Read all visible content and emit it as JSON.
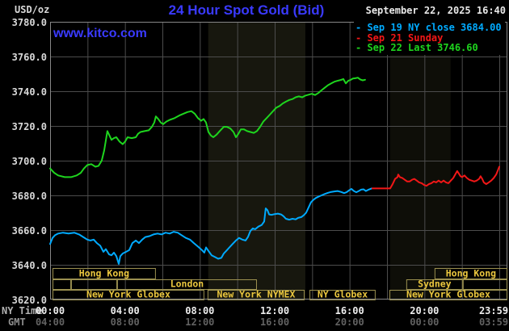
{
  "header": {
    "unit_label": "USD/oz",
    "title": "24 Hour Spot Gold (Bid)",
    "watermark": "www.kitco.com",
    "datetime": "September 22, 2025 16:40",
    "legend_dash": "-",
    "title_color": "#3a3aff"
  },
  "axes": {
    "ny_label": "NY Time",
    "gmt_label": "GMT",
    "ticks_hours": [
      0,
      4,
      8,
      12,
      16,
      20,
      24
    ],
    "ticks_ny": [
      "00:00",
      "04:00",
      "08:00",
      "12:00",
      "16:00",
      "20:00",
      "23:59"
    ],
    "ticks_gmt": [
      "04:00",
      "08:00",
      "12:00",
      "16:00",
      "20:00",
      "00:00",
      "03:59"
    ],
    "y_ticks": [
      "3780.0",
      "3760.0",
      "3740.0",
      "3720.0",
      "3700.0",
      "3680.0",
      "3660.0",
      "3640.0",
      "3620.0"
    ]
  },
  "chart_data": {
    "type": "line",
    "title": "24 Hour Spot Gold (Bid)",
    "xlabel": "NY Time",
    "ylabel": "USD/oz",
    "ylim": [
      3620,
      3780
    ],
    "y_step": 20,
    "x_hours_range": [
      0,
      24
    ],
    "grid": true,
    "legend_position": "top-right",
    "bands": [
      {
        "name": "nymex-floor-session",
        "start": 8.45,
        "end": 13.64,
        "color": "#17170e"
      },
      {
        "name": "sunday-evening-session",
        "start": 18.17,
        "end": 21.4,
        "color": "#0e0e08"
      }
    ],
    "sessions": {
      "box_border": "#9b9050",
      "label_color": "#eac63e",
      "rows": [
        {
          "items": [
            {
              "label": "Hong Kong",
              "start": 0.13,
              "end": 5.65
            },
            {
              "label": "Hong Kong",
              "start": 20.54,
              "end": 24.43
            }
          ]
        },
        {
          "items": [
            {
              "label": "",
              "start": 0.13,
              "end": 1.12
            },
            {
              "label": "",
              "start": 1.12,
              "end": 3.58
            },
            {
              "label": "London",
              "start": 3.58,
              "end": 11.05
            },
            {
              "label": "Sydney",
              "start": 19.03,
              "end": 22.05
            },
            {
              "label": "",
              "start": 22.05,
              "end": 24.43
            }
          ]
        },
        {
          "items": [
            {
              "label": "New York Globex",
              "start": 0.13,
              "end": 8.24
            },
            {
              "label": "New York NYMEX",
              "start": 8.41,
              "end": 13.6
            },
            {
              "label": "NY Globex",
              "start": 13.86,
              "end": 17.39
            },
            {
              "label": "New York Globex",
              "start": 18.13,
              "end": 24.43
            }
          ]
        }
      ]
    },
    "series": [
      {
        "name": "Sep 19",
        "legend": "Sep 19 NY close 3684.00",
        "color": "#00aaff",
        "points": [
          [
            0,
            3652
          ],
          [
            0.13,
            3655.5
          ],
          [
            0.26,
            3657
          ],
          [
            0.43,
            3658
          ],
          [
            0.69,
            3658.5
          ],
          [
            0.99,
            3658
          ],
          [
            1.29,
            3658.5
          ],
          [
            1.55,
            3657.5
          ],
          [
            1.77,
            3656
          ],
          [
            1.99,
            3654.5
          ],
          [
            2.16,
            3654
          ],
          [
            2.33,
            3654.5
          ],
          [
            2.5,
            3652.5
          ],
          [
            2.68,
            3651
          ],
          [
            2.85,
            3647.5
          ],
          [
            2.98,
            3649
          ],
          [
            3.15,
            3646
          ],
          [
            3.28,
            3645.5
          ],
          [
            3.41,
            3647
          ],
          [
            3.54,
            3645
          ],
          [
            3.67,
            3640.5
          ],
          [
            3.75,
            3645
          ],
          [
            3.88,
            3646.5
          ],
          [
            4.06,
            3647.5
          ],
          [
            4.23,
            3648.5
          ],
          [
            4.4,
            3652.5
          ],
          [
            4.58,
            3654
          ],
          [
            4.75,
            3652.5
          ],
          [
            4.92,
            3654.5
          ],
          [
            5.09,
            3656
          ],
          [
            5.31,
            3656.5
          ],
          [
            5.52,
            3657.5
          ],
          [
            5.74,
            3658
          ],
          [
            5.96,
            3657.5
          ],
          [
            6.17,
            3658.5
          ],
          [
            6.39,
            3658
          ],
          [
            6.6,
            3659
          ],
          [
            6.82,
            3658.5
          ],
          [
            7.03,
            3657
          ],
          [
            7.25,
            3655.5
          ],
          [
            7.47,
            3654.5
          ],
          [
            7.68,
            3652.5
          ],
          [
            7.9,
            3650.5
          ],
          [
            8.11,
            3648.5
          ],
          [
            8.24,
            3647
          ],
          [
            8.33,
            3650
          ],
          [
            8.46,
            3648
          ],
          [
            8.63,
            3645.5
          ],
          [
            8.8,
            3644.5
          ],
          [
            8.98,
            3643.5
          ],
          [
            9.15,
            3644
          ],
          [
            9.28,
            3646.5
          ],
          [
            9.41,
            3648
          ],
          [
            9.58,
            3650
          ],
          [
            9.75,
            3652
          ],
          [
            9.93,
            3654
          ],
          [
            10.1,
            3655.5
          ],
          [
            10.27,
            3654.5
          ],
          [
            10.44,
            3654
          ],
          [
            10.57,
            3656
          ],
          [
            10.7,
            3659.5
          ],
          [
            10.83,
            3661
          ],
          [
            10.96,
            3660.5
          ],
          [
            11.13,
            3662
          ],
          [
            11.31,
            3663
          ],
          [
            11.44,
            3665
          ],
          [
            11.52,
            3672.5
          ],
          [
            11.61,
            3671.5
          ],
          [
            11.7,
            3669
          ],
          [
            11.83,
            3668.8
          ],
          [
            12,
            3669.2
          ],
          [
            12.17,
            3669.5
          ],
          [
            12.34,
            3669
          ],
          [
            12.47,
            3668
          ],
          [
            12.6,
            3666.5
          ],
          [
            12.78,
            3666
          ],
          [
            12.95,
            3666.5
          ],
          [
            13.12,
            3666.2
          ],
          [
            13.25,
            3667
          ],
          [
            13.42,
            3667.5
          ],
          [
            13.55,
            3668.5
          ],
          [
            13.68,
            3670
          ],
          [
            13.81,
            3673
          ],
          [
            13.94,
            3676
          ],
          [
            14.07,
            3677.5
          ],
          [
            14.2,
            3678.5
          ],
          [
            14.33,
            3679.2
          ],
          [
            14.5,
            3680
          ],
          [
            14.67,
            3680.8
          ],
          [
            14.85,
            3681.5
          ],
          [
            15.02,
            3682
          ],
          [
            15.19,
            3682.3
          ],
          [
            15.36,
            3682.5
          ],
          [
            15.54,
            3682
          ],
          [
            15.71,
            3681.3
          ],
          [
            15.84,
            3681.8
          ],
          [
            15.97,
            3682.9
          ],
          [
            16.1,
            3683.7
          ],
          [
            16.23,
            3682.5
          ],
          [
            16.36,
            3681.8
          ],
          [
            16.49,
            3682.5
          ],
          [
            16.62,
            3683.3
          ],
          [
            16.75,
            3683.5
          ],
          [
            16.87,
            3682.5
          ],
          [
            17,
            3683.2
          ],
          [
            17.18,
            3684
          ]
        ]
      },
      {
        "name": "Sep 21",
        "legend": "Sep 21 Sunday",
        "color": "#f21717",
        "points": [
          [
            17.22,
            3684
          ],
          [
            18.17,
            3684
          ],
          [
            18.3,
            3686.5
          ],
          [
            18.43,
            3689.5
          ],
          [
            18.56,
            3690.5
          ],
          [
            18.6,
            3692
          ],
          [
            18.69,
            3690.5
          ],
          [
            18.82,
            3690
          ],
          [
            18.95,
            3689
          ],
          [
            19.08,
            3688
          ],
          [
            19.21,
            3688
          ],
          [
            19.34,
            3689
          ],
          [
            19.46,
            3689.5
          ],
          [
            19.59,
            3688.5
          ],
          [
            19.72,
            3687.5
          ],
          [
            19.85,
            3687
          ],
          [
            19.98,
            3686
          ],
          [
            20.11,
            3685.5
          ],
          [
            20.24,
            3686.5
          ],
          [
            20.37,
            3687
          ],
          [
            20.5,
            3688
          ],
          [
            20.63,
            3687.5
          ],
          [
            20.76,
            3688.5
          ],
          [
            20.89,
            3687.5
          ],
          [
            21.02,
            3688.5
          ],
          [
            21.15,
            3687.5
          ],
          [
            21.28,
            3687
          ],
          [
            21.41,
            3688.5
          ],
          [
            21.54,
            3690
          ],
          [
            21.67,
            3692.5
          ],
          [
            21.75,
            3694
          ],
          [
            21.84,
            3692.5
          ],
          [
            21.93,
            3691
          ],
          [
            22.01,
            3690.5
          ],
          [
            22.14,
            3691.5
          ],
          [
            22.27,
            3690
          ],
          [
            22.4,
            3689
          ],
          [
            22.53,
            3688.5
          ],
          [
            22.66,
            3688
          ],
          [
            22.79,
            3688.5
          ],
          [
            22.92,
            3689.5
          ],
          [
            23,
            3691
          ],
          [
            23.09,
            3689.5
          ],
          [
            23.17,
            3687.5
          ],
          [
            23.3,
            3686.5
          ],
          [
            23.44,
            3687.5
          ],
          [
            23.57,
            3688.5
          ],
          [
            23.7,
            3690
          ],
          [
            23.83,
            3692
          ],
          [
            23.91,
            3694
          ],
          [
            24,
            3696.5
          ]
        ]
      },
      {
        "name": "Sep 22",
        "legend": "Sep 22 Last 3746.60",
        "color": "#1ed51e",
        "points": [
          [
            0,
            3695.5
          ],
          [
            0.22,
            3693
          ],
          [
            0.43,
            3691.5
          ],
          [
            0.78,
            3690.5
          ],
          [
            1.12,
            3690.5
          ],
          [
            1.42,
            3691.5
          ],
          [
            1.64,
            3693
          ],
          [
            1.81,
            3695.5
          ],
          [
            1.99,
            3697.5
          ],
          [
            2.2,
            3698
          ],
          [
            2.42,
            3696.5
          ],
          [
            2.59,
            3697
          ],
          [
            2.76,
            3700
          ],
          [
            2.89,
            3706
          ],
          [
            3.06,
            3717
          ],
          [
            3.15,
            3715
          ],
          [
            3.28,
            3712
          ],
          [
            3.41,
            3713
          ],
          [
            3.54,
            3713.5
          ],
          [
            3.71,
            3711
          ],
          [
            3.88,
            3709.5
          ],
          [
            4.01,
            3711
          ],
          [
            4.14,
            3713.5
          ],
          [
            4.36,
            3713
          ],
          [
            4.58,
            3713.5
          ],
          [
            4.7,
            3715.5
          ],
          [
            4.83,
            3716.5
          ],
          [
            5.05,
            3717
          ],
          [
            5.27,
            3717.5
          ],
          [
            5.44,
            3719.5
          ],
          [
            5.57,
            3722
          ],
          [
            5.65,
            3725.5
          ],
          [
            5.78,
            3724
          ],
          [
            5.91,
            3722
          ],
          [
            6.04,
            3721
          ],
          [
            6.21,
            3722.5
          ],
          [
            6.39,
            3723.5
          ],
          [
            6.65,
            3724.5
          ],
          [
            6.9,
            3726
          ],
          [
            7.12,
            3727
          ],
          [
            7.34,
            3728
          ],
          [
            7.55,
            3728.5
          ],
          [
            7.73,
            3727
          ],
          [
            7.9,
            3724.5
          ],
          [
            8.07,
            3723
          ],
          [
            8.2,
            3724
          ],
          [
            8.33,
            3722
          ],
          [
            8.46,
            3716.5
          ],
          [
            8.59,
            3714.5
          ],
          [
            8.72,
            3713.5
          ],
          [
            8.89,
            3715
          ],
          [
            9.06,
            3717
          ],
          [
            9.28,
            3719.5
          ],
          [
            9.45,
            3719.5
          ],
          [
            9.63,
            3718.5
          ],
          [
            9.8,
            3716.5
          ],
          [
            9.93,
            3713.5
          ],
          [
            10.06,
            3715.5
          ],
          [
            10.19,
            3718
          ],
          [
            10.36,
            3718
          ],
          [
            10.53,
            3717
          ],
          [
            10.7,
            3716.5
          ],
          [
            10.88,
            3716
          ],
          [
            11.05,
            3717
          ],
          [
            11.22,
            3719.5
          ],
          [
            11.39,
            3722.5
          ],
          [
            11.57,
            3724.5
          ],
          [
            11.74,
            3726.5
          ],
          [
            11.91,
            3728.5
          ],
          [
            12.08,
            3730.5
          ],
          [
            12.26,
            3731.5
          ],
          [
            12.43,
            3733
          ],
          [
            12.6,
            3734
          ],
          [
            12.78,
            3735
          ],
          [
            12.95,
            3735.5
          ],
          [
            13.12,
            3736.5
          ],
          [
            13.29,
            3737
          ],
          [
            13.47,
            3736.5
          ],
          [
            13.64,
            3737.5
          ],
          [
            13.81,
            3738
          ],
          [
            13.98,
            3738.5
          ],
          [
            14.16,
            3737.8
          ],
          [
            14.33,
            3739
          ],
          [
            14.5,
            3740.5
          ],
          [
            14.67,
            3742
          ],
          [
            14.85,
            3743.5
          ],
          [
            15.02,
            3744.5
          ],
          [
            15.19,
            3745.5
          ],
          [
            15.36,
            3746
          ],
          [
            15.54,
            3746.5
          ],
          [
            15.67,
            3747
          ],
          [
            15.8,
            3744.5
          ],
          [
            15.93,
            3746
          ],
          [
            16.05,
            3746.5
          ],
          [
            16.18,
            3747.3
          ],
          [
            16.31,
            3747.5
          ],
          [
            16.44,
            3747.8
          ],
          [
            16.57,
            3746.8
          ],
          [
            16.7,
            3746.3
          ],
          [
            16.83,
            3746.6
          ]
        ]
      }
    ]
  }
}
